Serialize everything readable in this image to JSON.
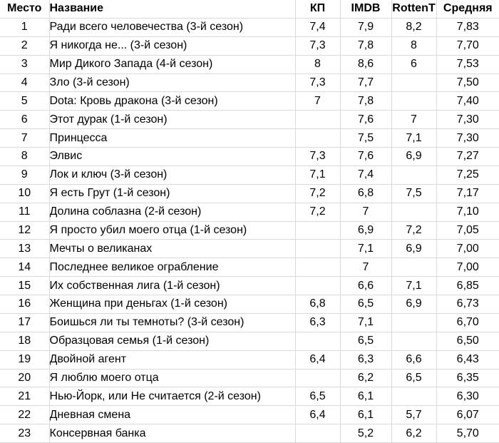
{
  "colors": {
    "background": "#ffffff",
    "gridline": "#d9d9d9",
    "text": "#000000"
  },
  "table": {
    "columns": [
      {
        "id": "place",
        "label": "Место",
        "align": "center"
      },
      {
        "id": "title",
        "label": "Название",
        "align": "left"
      },
      {
        "id": "kp",
        "label": "КП",
        "align": "center"
      },
      {
        "id": "imdb",
        "label": "IMDB",
        "align": "center"
      },
      {
        "id": "rotten",
        "label": "RottenT",
        "align": "center"
      },
      {
        "id": "avg",
        "label": "Средняя",
        "align": "center"
      }
    ],
    "rows": [
      {
        "place": "1",
        "title": "Ради всего человечества (3-й сезон)",
        "kp": "7,4",
        "imdb": "7,9",
        "rotten": "8,2",
        "avg": "7,83"
      },
      {
        "place": "2",
        "title": "Я никогда не... (3-й сезон)",
        "kp": "7,3",
        "imdb": "7,8",
        "rotten": "8",
        "avg": "7,70"
      },
      {
        "place": "3",
        "title": "Мир Дикого Запада (4-й сезон)",
        "kp": "8",
        "imdb": "8,6",
        "rotten": "6",
        "avg": "7,53"
      },
      {
        "place": "4",
        "title": "Зло (3-й сезон)",
        "kp": "7,3",
        "imdb": "7,7",
        "rotten": "",
        "avg": "7,50"
      },
      {
        "place": "5",
        "title": "Dota: Кровь дракона (3-й сезон)",
        "kp": "7",
        "imdb": "7,8",
        "rotten": "",
        "avg": "7,40"
      },
      {
        "place": "6",
        "title": "Этот дурак (1-й сезон)",
        "kp": "",
        "imdb": "7,6",
        "rotten": "7",
        "avg": "7,30"
      },
      {
        "place": "7",
        "title": "Принцесса",
        "kp": "",
        "imdb": "7,5",
        "rotten": "7,1",
        "avg": "7,30"
      },
      {
        "place": "8",
        "title": "Элвис",
        "kp": "7,3",
        "imdb": "7,6",
        "rotten": "6,9",
        "avg": "7,27"
      },
      {
        "place": "9",
        "title": "Лок и ключ (3-й сезон)",
        "kp": "7,1",
        "imdb": "7,4",
        "rotten": "",
        "avg": "7,25"
      },
      {
        "place": "10",
        "title": "Я есть Грут (1-й сезон)",
        "kp": "7,2",
        "imdb": "6,8",
        "rotten": "7,5",
        "avg": "7,17"
      },
      {
        "place": "11",
        "title": "Долина соблазна (2-й сезон)",
        "kp": "7,2",
        "imdb": "7",
        "rotten": "",
        "avg": "7,10"
      },
      {
        "place": "12",
        "title": "Я просто убил моего отца (1-й сезон)",
        "kp": "",
        "imdb": "6,9",
        "rotten": "7,2",
        "avg": "7,05"
      },
      {
        "place": "13",
        "title": "Мечты о великанах",
        "kp": "",
        "imdb": "7,1",
        "rotten": "6,9",
        "avg": "7,00"
      },
      {
        "place": "14",
        "title": "Последнее великое ограбление",
        "kp": "",
        "imdb": "7",
        "rotten": "",
        "avg": "7,00"
      },
      {
        "place": "15",
        "title": "Их собственная лига (1-й сезон)",
        "kp": "",
        "imdb": "6,6",
        "rotten": "7,1",
        "avg": "6,85"
      },
      {
        "place": "16",
        "title": "Женщина при деньгах (1-й сезон)",
        "kp": "6,8",
        "imdb": "6,5",
        "rotten": "6,9",
        "avg": "6,73"
      },
      {
        "place": "17",
        "title": "Боишься ли ты темноты? (3-й сезон)",
        "kp": "6,3",
        "imdb": "7,1",
        "rotten": "",
        "avg": "6,70"
      },
      {
        "place": "18",
        "title": "Образцовая семья (1-й сезон)",
        "kp": "",
        "imdb": "6,5",
        "rotten": "",
        "avg": "6,50"
      },
      {
        "place": "19",
        "title": "Двойной агент",
        "kp": "6,4",
        "imdb": "6,3",
        "rotten": "6,6",
        "avg": "6,43"
      },
      {
        "place": "20",
        "title": "Я люблю моего отца",
        "kp": "",
        "imdb": "6,2",
        "rotten": "6,5",
        "avg": "6,35"
      },
      {
        "place": "21",
        "title": "Нью-Йорк, или Не считается (2-й сезон)",
        "kp": "6,5",
        "imdb": "6,1",
        "rotten": "",
        "avg": "6,30"
      },
      {
        "place": "22",
        "title": "Дневная смена",
        "kp": "6,4",
        "imdb": "6,1",
        "rotten": "5,7",
        "avg": "6,07"
      },
      {
        "place": "23",
        "title": "Консервная банка",
        "kp": "",
        "imdb": "5,2",
        "rotten": "6,2",
        "avg": "5,70"
      }
    ]
  }
}
